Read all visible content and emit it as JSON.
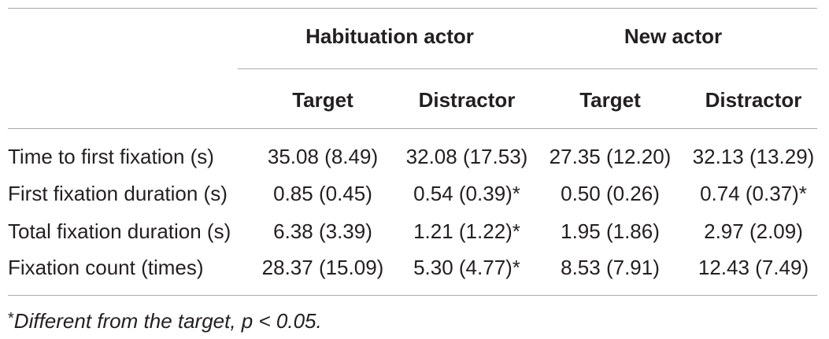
{
  "table": {
    "group_headers": {
      "habituation": "Habituation actor",
      "new": "New actor"
    },
    "sub_headers": [
      "Target",
      "Distractor",
      "Target",
      "Distractor"
    ],
    "rows": [
      {
        "label": "Time to first fixation (s)",
        "values": [
          "35.08 (8.49)",
          "32.08 (17.53)",
          "27.35 (12.20)",
          "32.13 (13.29)"
        ]
      },
      {
        "label": "First fixation duration (s)",
        "values": [
          "0.85 (0.45)",
          "0.54 (0.39)*",
          "0.50 (0.26)",
          "0.74 (0.37)*"
        ]
      },
      {
        "label": "Total fixation duration (s)",
        "values": [
          "6.38 (3.39)",
          "1.21 (1.22)*",
          "1.95 (1.86)",
          "2.97 (2.09)"
        ]
      },
      {
        "label": "Fixation count (times)",
        "values": [
          "28.37 (15.09)",
          "5.30 (4.77)*",
          "8.53 (7.91)",
          "12.43 (7.49)"
        ]
      }
    ]
  },
  "footnote": {
    "marker": "*",
    "text": "Different from the target, p < 0.05."
  }
}
